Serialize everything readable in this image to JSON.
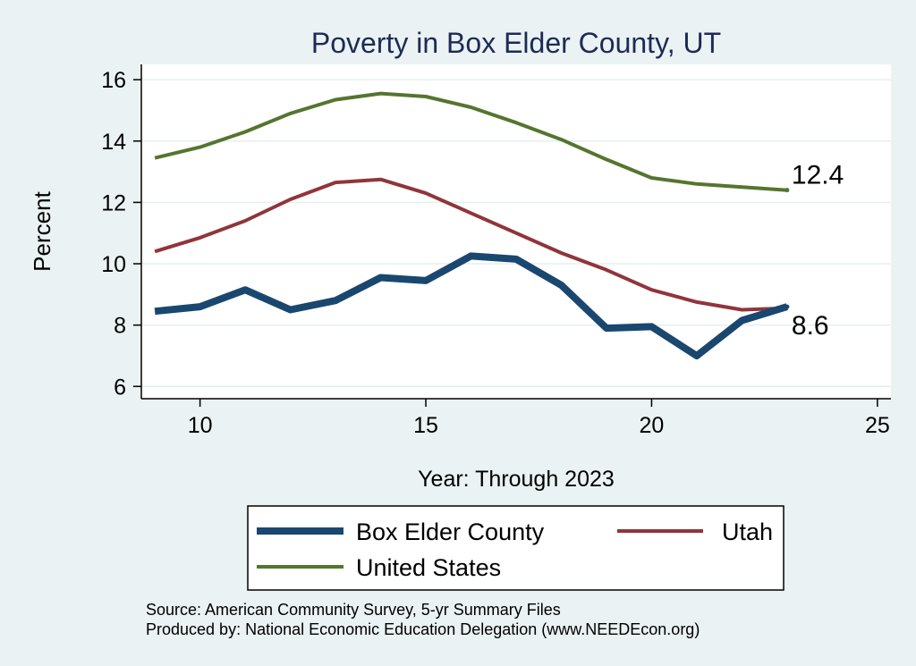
{
  "chart_data": {
    "type": "line",
    "title": "Poverty in Box Elder County, UT",
    "xlabel": "Year: Through 2023",
    "ylabel": "Percent",
    "xlim": [
      8.7,
      25.3
    ],
    "ylim": [
      5.6,
      16.5
    ],
    "xticks": [
      10,
      15,
      20,
      25
    ],
    "yticks": [
      6,
      8,
      10,
      12,
      14,
      16
    ],
    "grid": true,
    "x": [
      9,
      10,
      11,
      12,
      13,
      14,
      15,
      16,
      17,
      18,
      19,
      20,
      21,
      22,
      23
    ],
    "series": [
      {
        "name": "Box Elder County",
        "color": "#1a476f",
        "width": 8,
        "values": [
          8.45,
          8.6,
          9.15,
          8.5,
          8.8,
          9.55,
          9.45,
          10.25,
          10.15,
          9.3,
          7.9,
          7.95,
          7.0,
          8.15,
          8.6
        ]
      },
      {
        "name": "Utah",
        "color": "#90353b",
        "width": 4,
        "values": [
          10.4,
          10.85,
          11.4,
          12.1,
          12.65,
          12.75,
          12.3,
          11.65,
          11.0,
          10.35,
          9.8,
          9.15,
          8.75,
          8.5,
          8.55
        ]
      },
      {
        "name": "United States",
        "color": "#55752f",
        "width": 4,
        "values": [
          13.45,
          13.8,
          14.3,
          14.9,
          15.35,
          15.55,
          15.45,
          15.1,
          14.6,
          14.05,
          13.4,
          12.8,
          12.6,
          12.5,
          12.4
        ]
      }
    ],
    "annotations": [
      {
        "series": "United States",
        "text": "12.4"
      },
      {
        "series": "Box Elder County",
        "text": "8.6"
      }
    ],
    "legend": {
      "position": "bottom",
      "order": [
        "Box Elder County",
        "Utah",
        "United States"
      ]
    }
  },
  "source": {
    "line1": "Source: American Community Survey, 5-yr Summary Files",
    "line2": "Produced by: National Economic Education Delegation (www.NEEDEcon.org)"
  }
}
